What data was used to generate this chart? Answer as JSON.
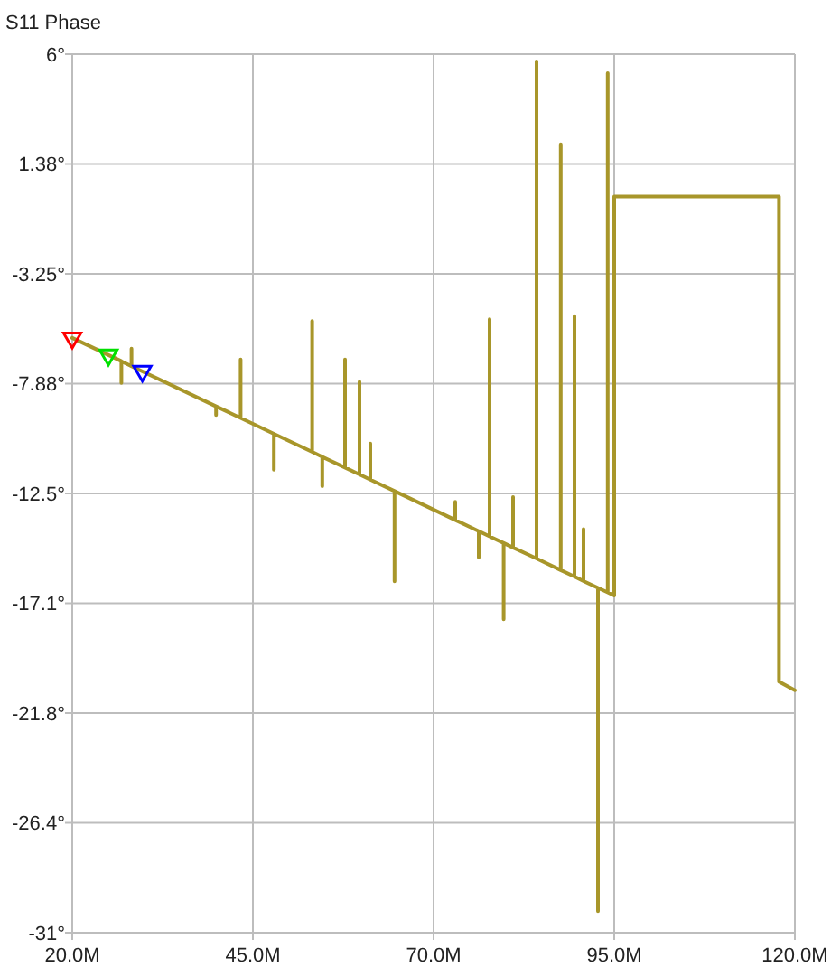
{
  "chart_data": {
    "type": "line",
    "title": "S11 Phase",
    "xlim": [
      20,
      120
    ],
    "xticks": [
      {
        "value": 20,
        "label": "20.0M"
      },
      {
        "value": 45,
        "label": "45.0M"
      },
      {
        "value": 70,
        "label": "70.0M"
      },
      {
        "value": 95,
        "label": "95.0M"
      },
      {
        "value": 120,
        "label": "120.0M"
      }
    ],
    "ylim": [
      -31,
      6
    ],
    "yticks": [
      {
        "value": 6,
        "label": "6°"
      },
      {
        "value": 1.375,
        "label": "1.38°"
      },
      {
        "value": -3.25,
        "label": "-3.25°"
      },
      {
        "value": -7.875,
        "label": "-7.88°"
      },
      {
        "value": -12.5,
        "label": "-12.5°"
      },
      {
        "value": -17.125,
        "label": "-17.1°"
      },
      {
        "value": -21.75,
        "label": "-21.8°"
      },
      {
        "value": -26.375,
        "label": "-26.4°"
      },
      {
        "value": -31,
        "label": "-31°"
      }
    ],
    "grid": true,
    "series": [
      {
        "color": "#a8962a",
        "line_style": "solid",
        "x": [
          20,
          26.8,
          26.8,
          26.8,
          28.2,
          28.2,
          28.2,
          39.9,
          39.9,
          39.9,
          43.3,
          43.3,
          43.3,
          47.9,
          47.9,
          47.9,
          53.2,
          53.2,
          53.2,
          54.6,
          54.6,
          54.6,
          57.75,
          57.75,
          57.75,
          59.75,
          59.75,
          59.75,
          61.25,
          61.25,
          61.25,
          64.6,
          64.6,
          64.6,
          73,
          73,
          73,
          76.25,
          76.25,
          76.25,
          77.75,
          77.75,
          77.75,
          79.7,
          79.7,
          79.7,
          81,
          81,
          81,
          84.25,
          84.25,
          84.25,
          87.6,
          87.6,
          87.6,
          89.5,
          89.5,
          89.5,
          90.75,
          90.75,
          90.75,
          92.75,
          92.75,
          92.75,
          94.1,
          94.1,
          94.1,
          95,
          95,
          117.8,
          117.8,
          120
        ],
        "values": [
          -5.95,
          -6.93,
          -7.85,
          -6.93,
          -7.14,
          -6.4,
          -7.14,
          -8.83,
          -9.2,
          -8.83,
          -9.32,
          -6.86,
          -9.32,
          -9.99,
          -11.5,
          -9.99,
          -10.75,
          -5.24,
          -10.75,
          -10.96,
          -12.2,
          -10.96,
          -11.41,
          -6.86,
          -11.41,
          -11.7,
          -7.8,
          -11.7,
          -11.92,
          -10.4,
          -11.92,
          -12.4,
          -16.2,
          -12.4,
          -13.62,
          -12.85,
          -13.62,
          -14.09,
          -15.2,
          -14.09,
          -14.31,
          -5.16,
          -14.31,
          -14.59,
          -17.8,
          -14.59,
          -14.78,
          -12.65,
          -14.78,
          -15.24,
          5.7,
          -15.24,
          -15.73,
          2.2,
          -15.73,
          -16.0,
          -5.03,
          -16.0,
          -16.19,
          -14.0,
          -16.19,
          -16.48,
          -30.1,
          -16.48,
          -16.67,
          5.2,
          -16.67,
          -16.8,
          0.0,
          0.0,
          -20.43,
          -20.79
        ]
      },
      {
        "type": "scatter",
        "marker": "triangle",
        "x": [
          20,
          25,
          29.7
        ],
        "values": [
          -5.95,
          -6.67,
          -7.35
        ],
        "colors": [
          "#ff0000",
          "#00e000",
          "#0000ff"
        ]
      }
    ]
  }
}
